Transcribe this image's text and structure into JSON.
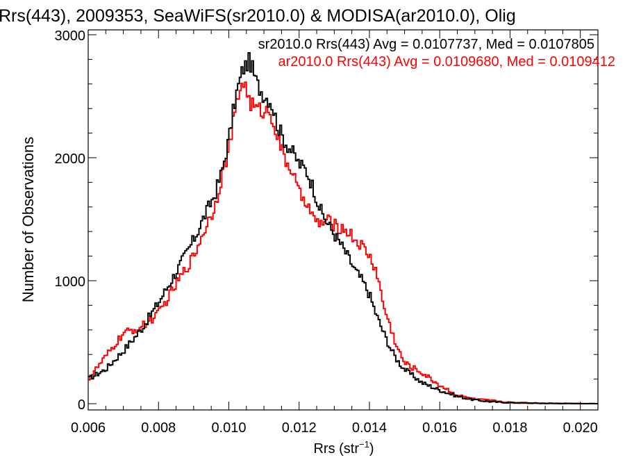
{
  "chart_data": {
    "type": "line",
    "title": "Rrs(443), 2009353, SeaWiFS(sr2010.0) & MODISA(ar2010.0), Olig",
    "xlabel": "Rrs (str",
    "xlabel_sup": "−1",
    "xlabel_close": ")",
    "ylabel": "Number of Observations",
    "xlim": [
      0.006,
      0.0205
    ],
    "ylim": [
      0,
      3000
    ],
    "x_ticks": [
      {
        "value": 0.006,
        "label": "0.006"
      },
      {
        "value": 0.008,
        "label": "0.008"
      },
      {
        "value": 0.01,
        "label": "0.010"
      },
      {
        "value": 0.012,
        "label": "0.012"
      },
      {
        "value": 0.014,
        "label": "0.014"
      },
      {
        "value": 0.016,
        "label": "0.016"
      },
      {
        "value": 0.018,
        "label": "0.018"
      },
      {
        "value": 0.02,
        "label": "0.020"
      }
    ],
    "y_ticks": [
      {
        "value": 0,
        "label": "0"
      },
      {
        "value": 1000,
        "label": "1000"
      },
      {
        "value": 2000,
        "label": "2000"
      },
      {
        "value": 3000,
        "label": "3000"
      }
    ],
    "grid": false,
    "legend": {
      "placement": "top-right"
    },
    "series": [
      {
        "name": "sr2010.0",
        "label": "sr2010.0 Rrs(443) Avg = 0.0107737, Med = 0.0107805",
        "color": "#000000",
        "x": [
          0.006,
          0.0065,
          0.007,
          0.0075,
          0.008,
          0.0085,
          0.009,
          0.0093,
          0.0096,
          0.0098,
          0.01,
          0.0102,
          0.0104,
          0.0106,
          0.0108,
          0.011,
          0.0112,
          0.0114,
          0.0116,
          0.0118,
          0.012,
          0.0122,
          0.0124,
          0.0126,
          0.0128,
          0.013,
          0.0132,
          0.0134,
          0.0136,
          0.0138,
          0.014,
          0.0142,
          0.0144,
          0.0146,
          0.0148,
          0.015,
          0.0155,
          0.016,
          0.0165,
          0.017,
          0.0175,
          0.018,
          0.019,
          0.02,
          0.0205
        ],
        "y": [
          200,
          280,
          430,
          600,
          820,
          1070,
          1330,
          1520,
          1700,
          1880,
          2150,
          2500,
          2720,
          2790,
          2600,
          2510,
          2460,
          2250,
          2130,
          2050,
          1950,
          1900,
          1760,
          1580,
          1470,
          1380,
          1290,
          1190,
          1080,
          1000,
          890,
          720,
          580,
          450,
          350,
          280,
          170,
          110,
          60,
          30,
          15,
          8,
          3,
          1,
          0
        ]
      },
      {
        "name": "ar2010.0",
        "label": "ar2010.0 Rrs(443) Avg = 0.0109680, Med = 0.0109412",
        "color": "#ff0000",
        "x": [
          0.006,
          0.0065,
          0.007,
          0.0075,
          0.008,
          0.0085,
          0.009,
          0.0093,
          0.0096,
          0.0098,
          0.01,
          0.0102,
          0.0104,
          0.0106,
          0.0108,
          0.011,
          0.0112,
          0.0114,
          0.0116,
          0.0118,
          0.012,
          0.0122,
          0.0124,
          0.0126,
          0.0128,
          0.013,
          0.0132,
          0.0134,
          0.0136,
          0.0138,
          0.014,
          0.0142,
          0.0144,
          0.0146,
          0.0148,
          0.015,
          0.0155,
          0.016,
          0.0165,
          0.017,
          0.0175,
          0.018,
          0.019,
          0.02,
          0.0205
        ],
        "y": [
          200,
          380,
          570,
          620,
          730,
          970,
          1200,
          1410,
          1600,
          1850,
          2060,
          2400,
          2650,
          2450,
          2390,
          2380,
          2370,
          2150,
          1980,
          1900,
          1700,
          1660,
          1500,
          1460,
          1490,
          1450,
          1430,
          1400,
          1330,
          1280,
          1200,
          1080,
          800,
          620,
          450,
          330,
          250,
          150,
          70,
          35,
          25,
          10,
          3,
          1,
          0
        ]
      }
    ]
  }
}
